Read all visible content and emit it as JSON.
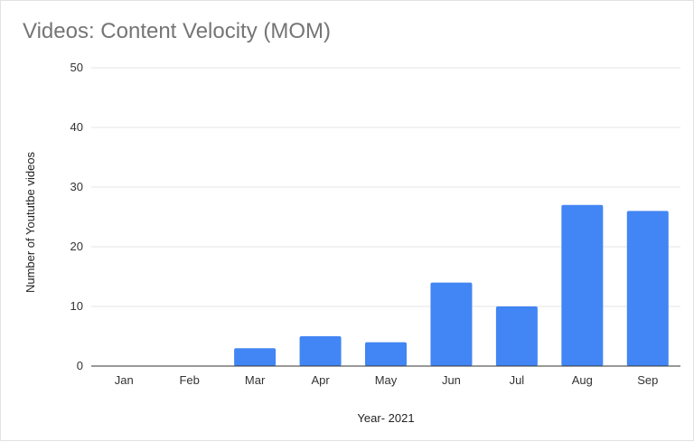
{
  "chart_data": {
    "type": "bar",
    "title": "Videos: Content Velocity (MOM)",
    "xlabel": "Year- 2021",
    "ylabel": "Number of Yoututbe videos",
    "categories": [
      "Jan",
      "Feb",
      "Mar",
      "Apr",
      "May",
      "Jun",
      "Jul",
      "Aug",
      "Sep"
    ],
    "values": [
      0,
      0,
      3,
      5,
      4,
      14,
      10,
      27,
      26
    ],
    "ylim": [
      0,
      50
    ],
    "yticks": [
      0,
      10,
      20,
      30,
      40,
      50
    ],
    "grid": true,
    "legend": "none",
    "colors": {
      "bar": "#4285f4"
    }
  }
}
